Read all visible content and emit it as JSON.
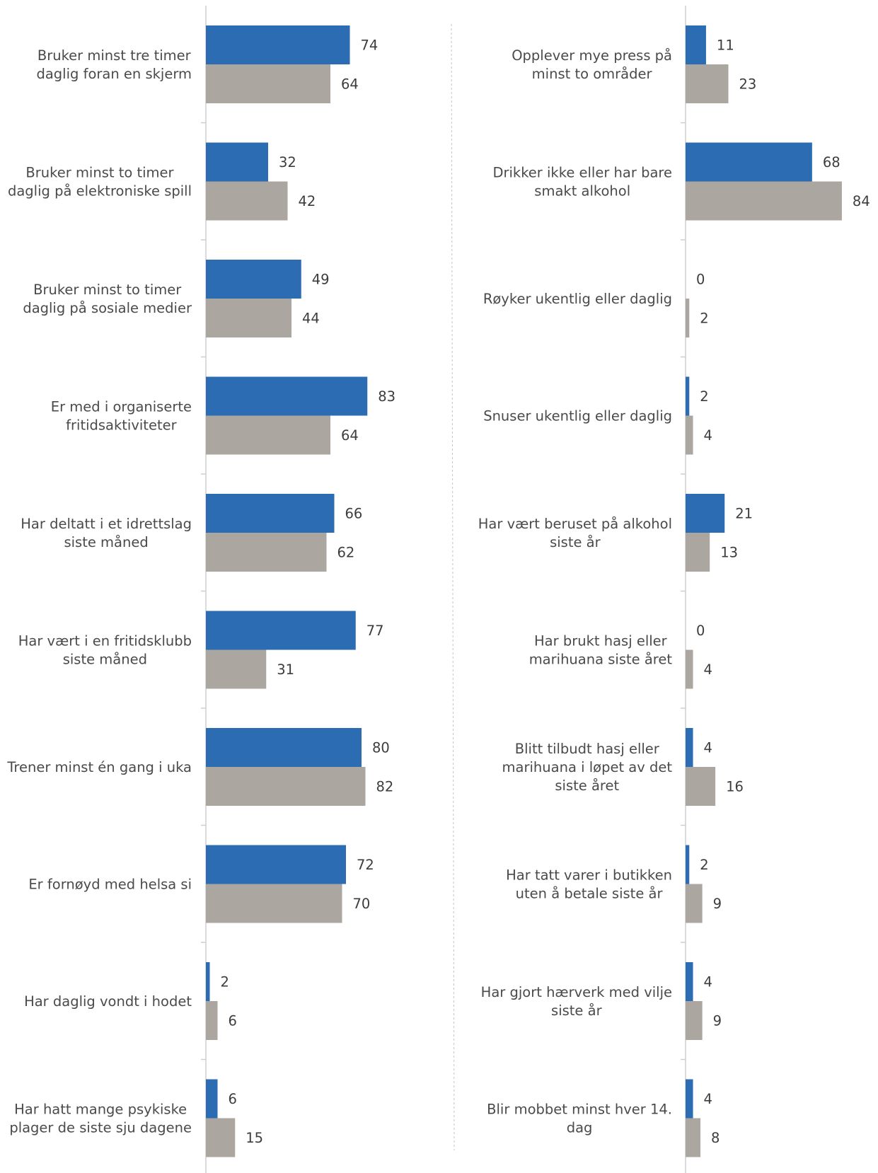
{
  "chart_data": [
    {
      "type": "bar",
      "orientation": "horizontal",
      "categories": [
        "Bruker minst tre timer\ndaglig foran en skjerm",
        "Bruker minst to timer\ndaglig på elektroniske spill",
        "Bruker minst to timer\ndaglig på sosiale medier",
        "Er med i organiserte\nfritidsaktiviteter",
        "Har deltatt i et idrettslag\nsiste måned",
        "Har vært i en fritidsklubb\nsiste måned",
        "Trener minst én gang i uka",
        "Er fornøyd med helsa si",
        "Har daglig vondt i hodet",
        "Har hatt mange psykiske\nplager de siste sju dagene"
      ],
      "series": [
        {
          "values": [
            74,
            32,
            49,
            83,
            66,
            77,
            80,
            72,
            2,
            6
          ],
          "color": "#2b6cb3"
        },
        {
          "values": [
            64,
            42,
            44,
            64,
            62,
            31,
            82,
            70,
            6,
            15
          ],
          "color": "#aca6a0"
        }
      ],
      "xlim": [
        0,
        100
      ],
      "grid": false,
      "legend": "none"
    },
    {
      "type": "bar",
      "orientation": "horizontal",
      "categories": [
        "Opplever mye press på\nminst to områder",
        "Drikker ikke eller har bare\nsmakt alkohol",
        "Røyker ukentlig eller daglig",
        "Snuser ukentlig eller daglig",
        "Har vært beruset på alkohol\nsiste år",
        "Har brukt hasj eller\nmarihuana siste året",
        "Blitt tilbudt hasj eller\nmarihuana i løpet av det\nsiste året",
        "Har tatt varer i butikken\nuten å betale siste år",
        "Har gjort hærverk med vilje\nsiste år",
        "Blir mobbet minst hver 14.\ndag"
      ],
      "series": [
        {
          "values": [
            11,
            68,
            0,
            2,
            21,
            0,
            4,
            2,
            4,
            4
          ],
          "color": "#2b6cb3"
        },
        {
          "values": [
            23,
            84,
            2,
            4,
            13,
            4,
            16,
            9,
            9,
            8
          ],
          "color": "#aca6a0"
        }
      ],
      "xlim": [
        0,
        100
      ],
      "grid": false,
      "legend": "none"
    }
  ]
}
